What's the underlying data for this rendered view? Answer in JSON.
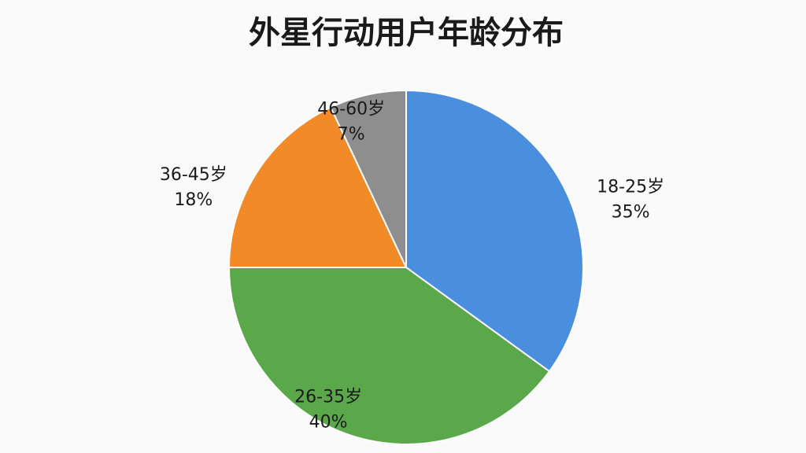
{
  "chart_data": {
    "type": "pie",
    "title": "外星行动用户年龄分布",
    "categories": [
      "18-25岁",
      "26-35岁",
      "36-45岁",
      "46-60岁"
    ],
    "values": [
      35,
      40,
      18,
      7
    ],
    "value_labels": [
      "35%",
      "40%",
      "18%",
      "7%"
    ],
    "colors": [
      "#4a8ede",
      "#5ba84a",
      "#f28a28",
      "#8e8e8e"
    ]
  }
}
